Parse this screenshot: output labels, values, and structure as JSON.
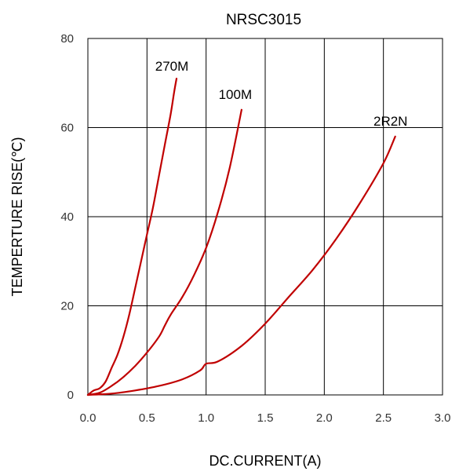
{
  "chart_data": {
    "type": "line",
    "title": "NRSC3015",
    "xlabel": "DC.CURRENT(A)",
    "ylabel": "TEMPERTURE RISE(℃)",
    "xlim": [
      0,
      3
    ],
    "ylim": [
      0,
      80
    ],
    "x_ticks": [
      "0.0",
      "0.5",
      "1.0",
      "1.5",
      "2.0",
      "2.5",
      "3.0"
    ],
    "y_ticks": [
      "0",
      "20",
      "40",
      "60",
      "80"
    ],
    "grid": true,
    "line_color": "#c00000",
    "series": [
      {
        "name": "270M",
        "x": [
          0.0,
          0.05,
          0.1,
          0.15,
          0.2,
          0.25,
          0.3,
          0.35,
          0.4,
          0.45,
          0.5,
          0.55,
          0.6,
          0.65,
          0.7,
          0.73,
          0.75
        ],
        "y": [
          0,
          1,
          1.5,
          3,
          6,
          9,
          13,
          18,
          24,
          30,
          36,
          42,
          49,
          56,
          63,
          68,
          71
        ]
      },
      {
        "name": "100M",
        "x": [
          0.0,
          0.1,
          0.2,
          0.3,
          0.4,
          0.5,
          0.6,
          0.65,
          0.7,
          0.8,
          0.9,
          1.0,
          1.1,
          1.2,
          1.3
        ],
        "y": [
          0,
          0.5,
          2,
          4,
          6.5,
          9.5,
          13,
          15.5,
          18,
          22,
          27,
          33,
          41,
          51,
          64
        ]
      },
      {
        "name": "2R2N",
        "x": [
          0.0,
          0.2,
          0.4,
          0.6,
          0.8,
          0.95,
          1.0,
          1.1,
          1.3,
          1.5,
          1.7,
          1.9,
          2.1,
          2.3,
          2.5,
          2.6
        ],
        "y": [
          0,
          0.3,
          1,
          2,
          3.5,
          5.5,
          7,
          7.5,
          11,
          16,
          22,
          28,
          35,
          43,
          52,
          58
        ]
      }
    ]
  }
}
